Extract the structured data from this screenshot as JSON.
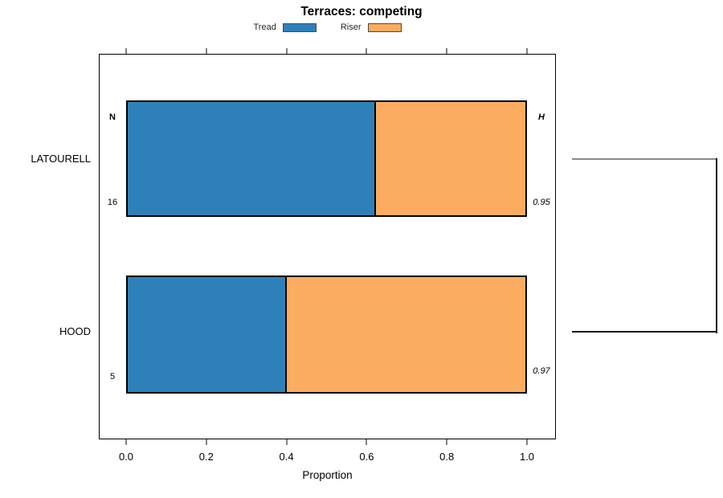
{
  "title": "Terraces: competing",
  "legend": {
    "items": [
      {
        "label": "Tread",
        "color": "#2E81B8"
      },
      {
        "label": "Riser",
        "color": "#FBAC60"
      }
    ]
  },
  "chart_data": {
    "type": "bar",
    "orientation": "horizontal",
    "stacked": true,
    "title": "Terraces: competing",
    "xlabel": "Proportion",
    "xlim": [
      0.0,
      1.0
    ],
    "x_ticks": [
      "0.0",
      "0.2",
      "0.4",
      "0.6",
      "0.8",
      "1.0"
    ],
    "grid": false,
    "legend_position": "top",
    "categories": [
      "LATOURELL",
      "HOOD"
    ],
    "series": [
      {
        "name": "Tread",
        "color": "#2E81B8",
        "values": [
          0.625,
          0.4
        ]
      },
      {
        "name": "Riser",
        "color": "#FBAC60",
        "values": [
          0.375,
          0.6
        ]
      }
    ],
    "annotations": {
      "n_header": "N",
      "h_header": "H",
      "rows": [
        {
          "category": "LATOURELL",
          "n": "16",
          "h": "0.95"
        },
        {
          "category": "HOOD",
          "n": "5",
          "h": "0.97"
        }
      ]
    },
    "dendrogram": {
      "present": true,
      "joined": [
        "LATOURELL",
        "HOOD"
      ],
      "top_branch_color": "#8a8a8a",
      "bottom_branch_color": "#1a1a1a"
    }
  }
}
